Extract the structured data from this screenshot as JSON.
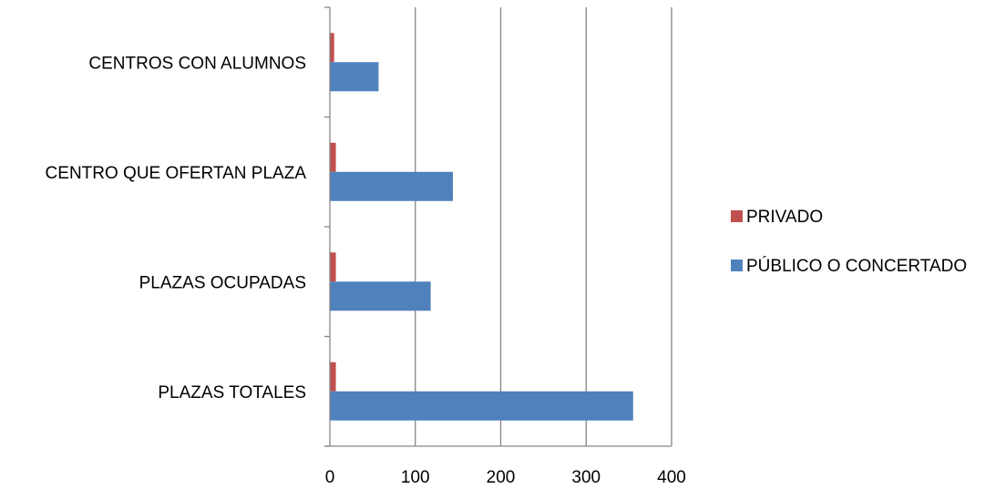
{
  "chart_data": {
    "type": "bar",
    "orientation": "horizontal",
    "categories": [
      "CENTROS CON ALUMNOS",
      "CENTRO QUE OFERTAN PLAZA",
      "PLAZAS OCUPADAS",
      "PLAZAS TOTALES"
    ],
    "series": [
      {
        "name": "PRIVADO",
        "color": "#C0504D",
        "values": [
          5,
          7,
          7,
          7
        ]
      },
      {
        "name": "PÚBLICO O CONCERTADO",
        "color": "#4F81BD",
        "values": [
          57,
          144,
          118,
          355
        ]
      }
    ],
    "xlim": [
      0,
      400
    ],
    "xticks": [
      0,
      100,
      200,
      300,
      400
    ],
    "grid": "vertical",
    "legend_position": "right"
  }
}
